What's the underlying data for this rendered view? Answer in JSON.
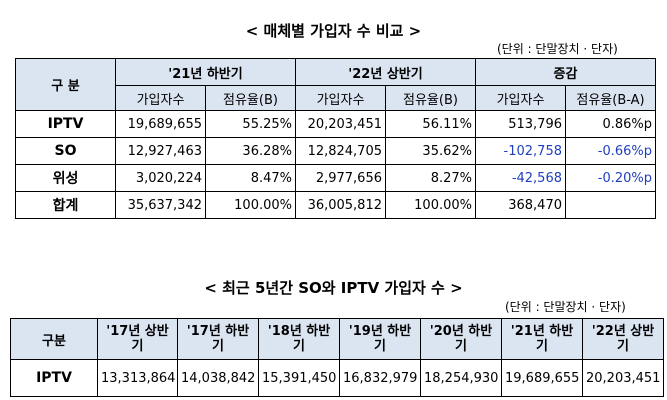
{
  "table1": {
    "title": "< 매체별 가입자 수 비교 >",
    "unit": "(단위 : 단말장치 · 단자)",
    "header": {
      "group_label": "구  분",
      "periods": [
        "'21년 하반기",
        "'22년 상반기",
        "증감"
      ],
      "subcols": [
        "가입자수",
        "점유율(B)",
        "가입자수",
        "점유율(B)",
        "가입자수",
        "점유율(B-A)"
      ]
    },
    "rows": [
      {
        "label": "IPTV",
        "v1": "19,689,655",
        "s1": "55.25%",
        "v2": "20,203,451",
        "s2": "56.11%",
        "dv": "513,796",
        "ds": "0.86%p"
      },
      {
        "label": "SO",
        "v1": "12,927,463",
        "s1": "36.28%",
        "v2": "12,824,705",
        "s2": "35.62%",
        "dv": "-102,758",
        "ds": "-0.66%p"
      },
      {
        "label": "위성",
        "v1": "3,020,224",
        "s1": "8.47%",
        "v2": "2,977,656",
        "s2": "8.27%",
        "dv": "-42,568",
        "ds": "-0.20%p"
      },
      {
        "label": "합계",
        "v1": "35,637,342",
        "s1": "100.00%",
        "v2": "36,005,812",
        "s2": "100.00%",
        "dv": "368,470",
        "ds": ""
      }
    ]
  },
  "table2": {
    "title": "< 최근 5년간 SO와 IPTV 가입자 수 >",
    "unit": "(단위 : 단말장치 · 단자)",
    "header": {
      "group_label": "구분",
      "periods": [
        "'17년 상반기",
        "'17년 하반기",
        "'18년 하반기",
        "'19년 하반기",
        "'20년 하반기",
        "'21년 하반기",
        "'22년 상반기"
      ]
    },
    "rows": [
      {
        "label": "IPTV",
        "values": [
          "13,313,864",
          "14,038,842",
          "15,391,450",
          "16,832,979",
          "18,254,930",
          "19,689,655",
          "20,203,451"
        ]
      }
    ]
  },
  "colors": {
    "header_bg": "#dbe5f1",
    "negative_text": "#1f3fbf"
  }
}
